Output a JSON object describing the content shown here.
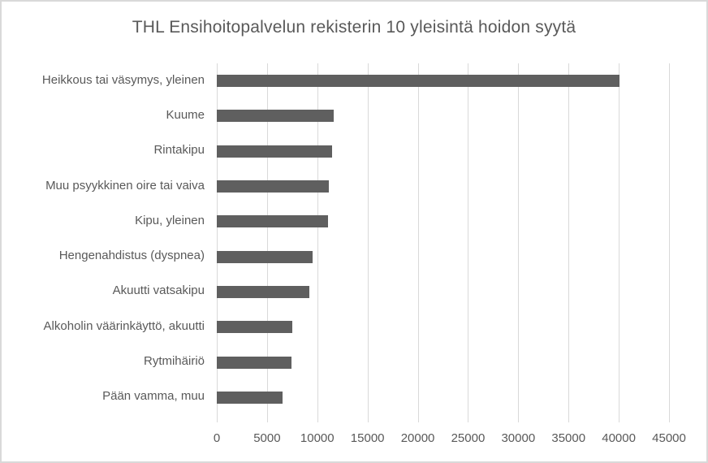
{
  "chart_data": {
    "type": "bar",
    "orientation": "horizontal",
    "title": "THL Ensihoitopalvelun rekisterin 10 yleisintä hoidon syytä",
    "categories": [
      "Heikkous tai väsymys, yleinen",
      "Kuume",
      "Rintakipu",
      "Muu psyykkinen oire tai vaiva",
      "Kipu, yleinen",
      "Hengenahdistus (dyspnea)",
      "Akuutti vatsakipu",
      "Alkoholin väärinkäyttö, akuutti",
      "Rytmihäiriö",
      "Pään vamma, muu"
    ],
    "values": [
      40100,
      11600,
      11500,
      11150,
      11100,
      9500,
      9250,
      7500,
      7400,
      6550
    ],
    "xlabel": "",
    "ylabel": "",
    "xlim": [
      0,
      45000
    ],
    "x_ticks": [
      0,
      5000,
      10000,
      15000,
      20000,
      25000,
      30000,
      35000,
      40000,
      45000
    ],
    "grid": true,
    "legend": "none",
    "colors": {
      "bar": "#5f5f5f",
      "grid": "#d9d9d9",
      "text": "#595959",
      "border": "#d9d9d9",
      "background": "#ffffff"
    }
  }
}
